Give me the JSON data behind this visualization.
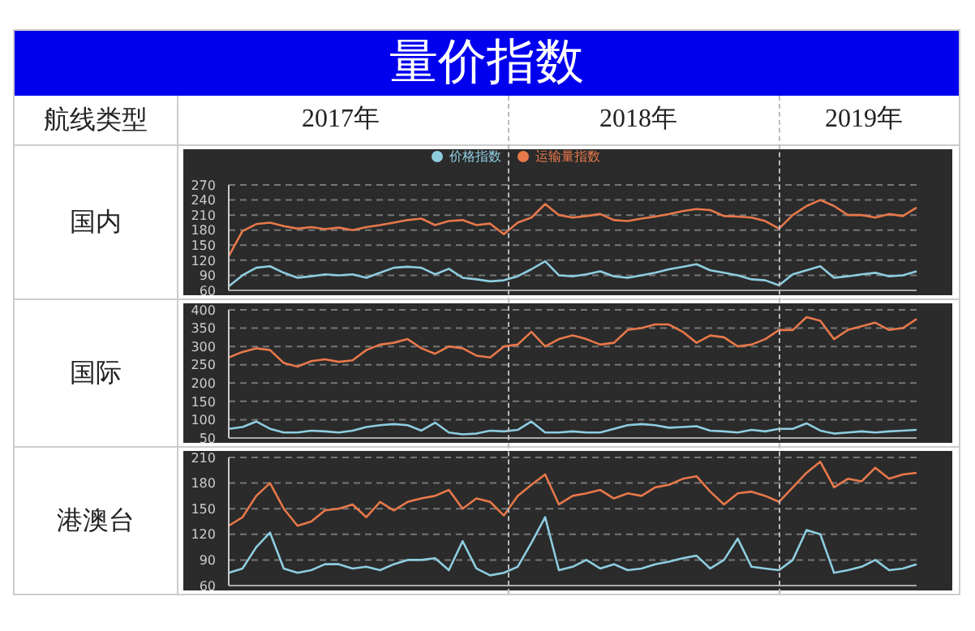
{
  "chart_data": [
    {
      "type": "line",
      "title": "量价指数",
      "ylabel": "国内",
      "annotations": [
        "航线类型",
        "2017年",
        "2018年",
        "2019年"
      ],
      "categories": [
        null,
        null,
        null,
        null,
        null,
        null,
        null,
        null,
        null,
        null,
        null,
        null,
        null,
        null,
        null,
        null,
        null,
        null,
        null,
        null,
        null,
        null,
        null,
        null,
        null,
        null,
        null,
        null,
        null,
        null,
        null,
        null,
        null,
        null,
        null,
        null,
        null,
        null,
        null,
        null,
        null,
        null,
        null,
        null,
        null,
        null,
        null,
        null,
        null,
        null,
        null
      ],
      "series": [
        {
          "name": "运输量指数",
          "color": "#e8784a",
          "values": [
            128,
            178,
            192,
            195,
            188,
            183,
            186,
            182,
            185,
            180,
            186,
            190,
            195,
            200,
            203,
            190,
            198,
            200,
            190,
            193,
            172,
            195,
            205,
            232,
            210,
            205,
            208,
            212,
            200,
            198,
            203,
            207,
            212,
            218,
            222,
            220,
            208,
            207,
            205,
            198,
            183,
            210,
            228,
            240,
            228,
            210,
            210,
            205,
            212,
            208,
            225
          ]
        },
        {
          "name": "价格指数",
          "color": "#8ecde0",
          "values": [
            68,
            90,
            105,
            108,
            95,
            85,
            88,
            92,
            90,
            92,
            85,
            95,
            105,
            107,
            105,
            92,
            103,
            85,
            82,
            78,
            80,
            88,
            102,
            118,
            90,
            88,
            92,
            98,
            88,
            85,
            90,
            95,
            102,
            107,
            112,
            100,
            95,
            90,
            82,
            80,
            70,
            92,
            100,
            108,
            85,
            88,
            92,
            95,
            88,
            90,
            98
          ]
        }
      ],
      "ylim": [
        60,
        270
      ],
      "yticks": [
        60,
        90,
        120,
        150,
        180,
        210,
        240,
        270
      ],
      "grid": "y",
      "legend": "top",
      "tick_labels": "y"
    },
    {
      "type": "line",
      "ylabel": "国际",
      "categories": [
        null,
        null,
        null,
        null,
        null,
        null,
        null,
        null,
        null,
        null,
        null,
        null,
        null,
        null,
        null,
        null,
        null,
        null,
        null,
        null,
        null,
        null,
        null,
        null,
        null,
        null,
        null,
        null,
        null,
        null,
        null,
        null,
        null,
        null,
        null,
        null,
        null,
        null,
        null,
        null,
        null,
        null,
        null,
        null,
        null,
        null,
        null,
        null,
        null,
        null,
        null
      ],
      "series": [
        {
          "color": "#e8784a",
          "values": [
            270,
            285,
            295,
            290,
            255,
            245,
            260,
            265,
            258,
            262,
            290,
            305,
            310,
            320,
            295,
            280,
            300,
            295,
            275,
            270,
            300,
            305,
            340,
            300,
            320,
            330,
            320,
            305,
            310,
            345,
            350,
            360,
            360,
            340,
            310,
            330,
            325,
            300,
            305,
            320,
            345,
            345,
            380,
            370,
            320,
            345,
            355,
            365,
            345,
            350,
            375
          ]
        },
        {
          "color": "#8ecde0",
          "values": [
            75,
            80,
            95,
            75,
            65,
            65,
            70,
            68,
            65,
            70,
            80,
            85,
            88,
            85,
            70,
            92,
            65,
            60,
            62,
            70,
            68,
            72,
            95,
            65,
            65,
            68,
            65,
            65,
            75,
            85,
            88,
            85,
            78,
            80,
            82,
            70,
            68,
            65,
            72,
            68,
            75,
            75,
            90,
            70,
            62,
            65,
            68,
            65,
            68,
            70,
            72
          ]
        }
      ],
      "ylim": [
        50,
        400
      ],
      "yticks": [
        50,
        100,
        150,
        200,
        250,
        300,
        350,
        400
      ],
      "grid": "y",
      "tick_labels": "y"
    },
    {
      "type": "line",
      "ylabel": "港澳台",
      "categories": [
        null,
        null,
        null,
        null,
        null,
        null,
        null,
        null,
        null,
        null,
        null,
        null,
        null,
        null,
        null,
        null,
        null,
        null,
        null,
        null,
        null,
        null,
        null,
        null,
        null,
        null,
        null,
        null,
        null,
        null,
        null,
        null,
        null,
        null,
        null,
        null,
        null,
        null,
        null,
        null,
        null,
        null,
        null,
        null,
        null,
        null,
        null,
        null,
        null,
        null,
        null
      ],
      "series": [
        {
          "color": "#e8784a",
          "values": [
            130,
            140,
            165,
            180,
            150,
            130,
            135,
            148,
            150,
            155,
            140,
            158,
            148,
            158,
            162,
            165,
            172,
            150,
            162,
            158,
            142,
            165,
            178,
            190,
            155,
            165,
            168,
            172,
            162,
            168,
            165,
            175,
            178,
            185,
            188,
            170,
            155,
            168,
            170,
            165,
            158,
            175,
            192,
            205,
            175,
            185,
            182,
            198,
            185,
            190,
            192
          ]
        },
        {
          "color": "#8ecde0",
          "values": [
            75,
            80,
            105,
            122,
            80,
            75,
            78,
            85,
            85,
            80,
            82,
            78,
            85,
            90,
            90,
            92,
            78,
            112,
            80,
            72,
            75,
            82,
            110,
            140,
            78,
            82,
            90,
            80,
            85,
            78,
            80,
            85,
            88,
            92,
            95,
            80,
            90,
            115,
            82,
            80,
            78,
            90,
            125,
            120,
            75,
            78,
            82,
            90,
            78,
            80,
            85
          ]
        }
      ],
      "ylim": [
        60,
        210
      ],
      "yticks": [
        60,
        90,
        120,
        150,
        180,
        210
      ],
      "grid": "y",
      "tick_labels": "y"
    }
  ]
}
